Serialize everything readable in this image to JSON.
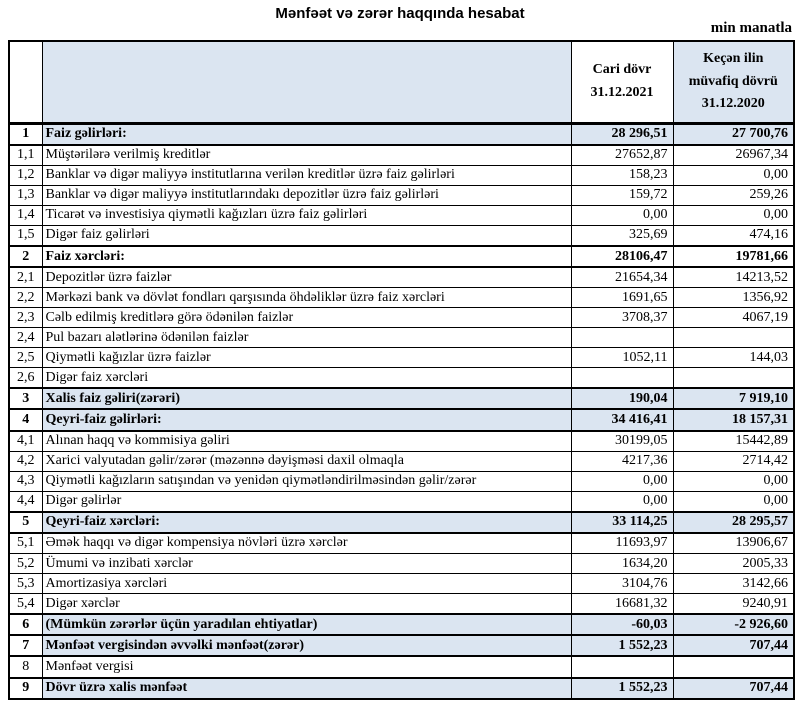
{
  "page": {
    "title": "Mənfəət və zərər haqqında hesabat",
    "unit_note": "min manatla"
  },
  "colors": {
    "highlight": "#dbe5f1",
    "border": "#000000"
  },
  "table": {
    "header": {
      "number_column": "",
      "label_column": "",
      "current_line1": "Cari dövr",
      "current_line2": "31.12.2021",
      "previous_line1": "Keçən ilin",
      "previous_line2": "müvafiq dövrü",
      "previous_line3": "31.12.2020"
    },
    "rows": [
      {
        "num": "1",
        "label": "Faiz gəlirləri:",
        "current": "28 296,51",
        "previous": "27 700,76",
        "section": true,
        "bold": true,
        "highlight": true
      },
      {
        "num": "1,1",
        "label": "Müştərilərə verilmiş kreditlər",
        "current": "27652,87",
        "previous": "26967,34"
      },
      {
        "num": "1,2",
        "label": "Banklar və digər maliyyə institutlarına verilən kreditlər üzrə faiz gəlirləri",
        "current": "158,23",
        "previous": "0,00"
      },
      {
        "num": "1,3",
        "label": "Banklar və digər maliyyə institutlarındakı depozitlər üzrə faiz gəlirləri",
        "current": "159,72",
        "previous": "259,26"
      },
      {
        "num": "1,4",
        "label": "Ticarət və investisiya qiymətli kağızları üzrə faiz gəlirləri",
        "current": "0,00",
        "previous": "0,00"
      },
      {
        "num": "1,5",
        "label": "Digər faiz gəlirləri",
        "current": "325,69",
        "previous": "474,16"
      },
      {
        "num": "2",
        "label": "Faiz xərcləri:",
        "current": "28106,47",
        "previous": "19781,66",
        "section": true,
        "bold": true
      },
      {
        "num": "2,1",
        "label": "Depozitlər üzrə faizlər",
        "current": "21654,34",
        "previous": "14213,52"
      },
      {
        "num": "2,2",
        "label": "Mərkəzi bank və dövlət fondları qarşısında öhdəliklər üzrə faiz xərcləri",
        "current": "1691,65",
        "previous": "1356,92"
      },
      {
        "num": "2,3",
        "label": "Cəlb edilmiş kreditlərə görə ödənilən faizlər",
        "current": "3708,37",
        "previous": "4067,19"
      },
      {
        "num": "2,4",
        "label": "Pul bazarı alətlərinə ödənilən faizlər",
        "current": "",
        "previous": ""
      },
      {
        "num": "2,5",
        "label": "Qiymətli kağızlar üzrə faizlər",
        "current": "1052,11",
        "previous": "144,03"
      },
      {
        "num": "2,6",
        "label": "Digər faiz xərcləri",
        "current": "",
        "previous": ""
      },
      {
        "num": "3",
        "label": "Xalis faiz gəliri(zərəri)",
        "current": "190,04",
        "previous": "7 919,10",
        "section": true,
        "bold": true,
        "highlight": true
      },
      {
        "num": "4",
        "label": "Qeyri-faiz gəlirləri:",
        "current": "34 416,41",
        "previous": "18 157,31",
        "section": true,
        "bold": true,
        "highlight": true
      },
      {
        "num": "4,1",
        "label": "Alınan haqq və kommisiya gəliri",
        "current": "30199,05",
        "previous": "15442,89"
      },
      {
        "num": "4,2",
        "label": "Xarici valyutadan gəlir/zərər (məzənnə dəyişməsi daxil olmaqla",
        "current": "4217,36",
        "previous": "2714,42"
      },
      {
        "num": "4,3",
        "label": "Qiymətli kağızların satışından və yenidən qiymətləndirilməsindən gəlir/zərər",
        "current": "0,00",
        "previous": "0,00"
      },
      {
        "num": "4,4",
        "label": "Digər gəlirlər",
        "current": "0,00",
        "previous": "0,00"
      },
      {
        "num": "5",
        "label": "Qeyri-faiz xərcləri:",
        "current": "33 114,25",
        "previous": "28 295,57",
        "section": true,
        "bold": true,
        "highlight": true
      },
      {
        "num": "5,1",
        "label": "Əmək haqqı və digər kompensiya növləri üzrə xərclər",
        "current": "11693,97",
        "previous": "13906,67"
      },
      {
        "num": "5,2",
        "label": "Ümumi və inzibati xərclər",
        "current": "1634,20",
        "previous": "2005,33"
      },
      {
        "num": "5,3",
        "label": "Amortizasiya xərcləri",
        "current": "3104,76",
        "previous": "3142,66"
      },
      {
        "num": "5,4",
        "label": "Digər xərclər",
        "current": "16681,32",
        "previous": "9240,91"
      },
      {
        "num": "6",
        "label": "(Mümkün zərərlər üçün yaradılan ehtiyatlar)",
        "current": "-60,03",
        "previous": "-2 926,60",
        "section": true,
        "bold": true,
        "highlight": true
      },
      {
        "num": "7",
        "label": "Mənfəət vergisindən əvvəlki mənfəət(zərər)",
        "current": "1 552,23",
        "previous": "707,44",
        "section": true,
        "bold": true,
        "highlight": true
      },
      {
        "num": "8",
        "label": "Mənfəət vergisi",
        "current": "",
        "previous": "",
        "section": true
      },
      {
        "num": "9",
        "label": "Dövr üzrə xalis mənfəət",
        "current": "1 552,23",
        "previous": "707,44",
        "section": true,
        "bold": true,
        "highlight": true
      }
    ]
  }
}
